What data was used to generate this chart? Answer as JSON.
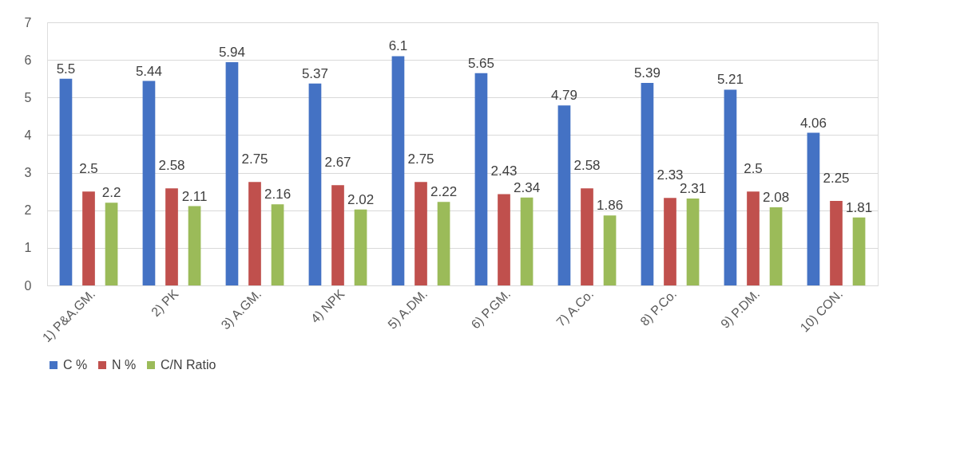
{
  "chart_data": {
    "type": "bar",
    "categories": [
      "1) P&A.GM.",
      "2) PK",
      "3) A.GM.",
      "4) NPK",
      "5) A.DM.",
      "6) P.GM.",
      "7) A.Co.",
      "8) P.Co.",
      "9) P.DM.",
      "10) CON."
    ],
    "series": [
      {
        "name": "C %",
        "color": "#4472c4",
        "values": [
          5.5,
          5.44,
          5.94,
          5.37,
          6.1,
          5.65,
          4.79,
          5.39,
          5.21,
          4.06
        ]
      },
      {
        "name": "N %",
        "color": "#c0504d",
        "values": [
          2.5,
          2.58,
          2.75,
          2.67,
          2.75,
          2.43,
          2.58,
          2.33,
          2.5,
          2.25
        ]
      },
      {
        "name": "C/N Ratio",
        "color": "#9bbb59",
        "values": [
          2.2,
          2.11,
          2.16,
          2.02,
          2.22,
          2.34,
          1.86,
          2.31,
          2.08,
          1.81
        ]
      }
    ],
    "ylim": [
      0,
      7
    ],
    "yticks": [
      0,
      1,
      2,
      3,
      4,
      5,
      6,
      7
    ],
    "grid": "y",
    "legend": "bottom",
    "data_labels": true
  }
}
